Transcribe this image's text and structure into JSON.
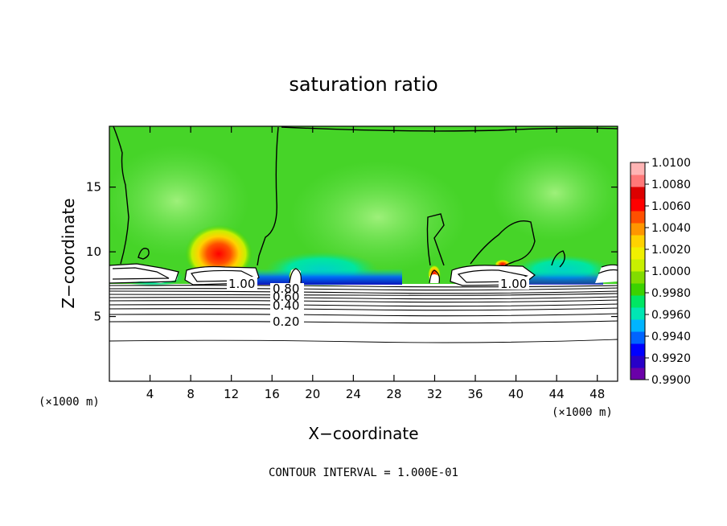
{
  "chart_data": {
    "type": "heatmap",
    "title": "saturation ratio",
    "xlabel": "X−coordinate",
    "ylabel": "Z−coordinate",
    "x_unit": "(×1000 m)",
    "y_unit": "(×1000 m)",
    "xlim": [
      0,
      50
    ],
    "ylim": [
      0,
      19.7
    ],
    "x_ticks": [
      4,
      8,
      12,
      16,
      20,
      24,
      28,
      32,
      36,
      40,
      44,
      48
    ],
    "y_ticks": [
      5,
      10,
      15
    ],
    "colorbar": {
      "ticks": [
        "0.9900",
        "0.9920",
        "0.9940",
        "0.9960",
        "0.9980",
        "1.0000",
        "1.0020",
        "1.0040",
        "1.0060",
        "1.0080",
        "1.0100"
      ],
      "colors": [
        "#6a00a8",
        "#2800c8",
        "#0000ff",
        "#0064ff",
        "#00b4ff",
        "#00e6b4",
        "#00e664",
        "#3cd200",
        "#82dc00",
        "#c8f000",
        "#f0f000",
        "#ffd200",
        "#ff9600",
        "#ff5000",
        "#ff0000",
        "#dc0000",
        "#ff7878",
        "#ffb4b4"
      ]
    },
    "contour_labels": [
      "1.00",
      "1.00",
      "0.80",
      "0.60",
      "0.40",
      "0.20"
    ],
    "contour_interval_text": "CONTOUR INTERVAL =  1.000E-01"
  }
}
